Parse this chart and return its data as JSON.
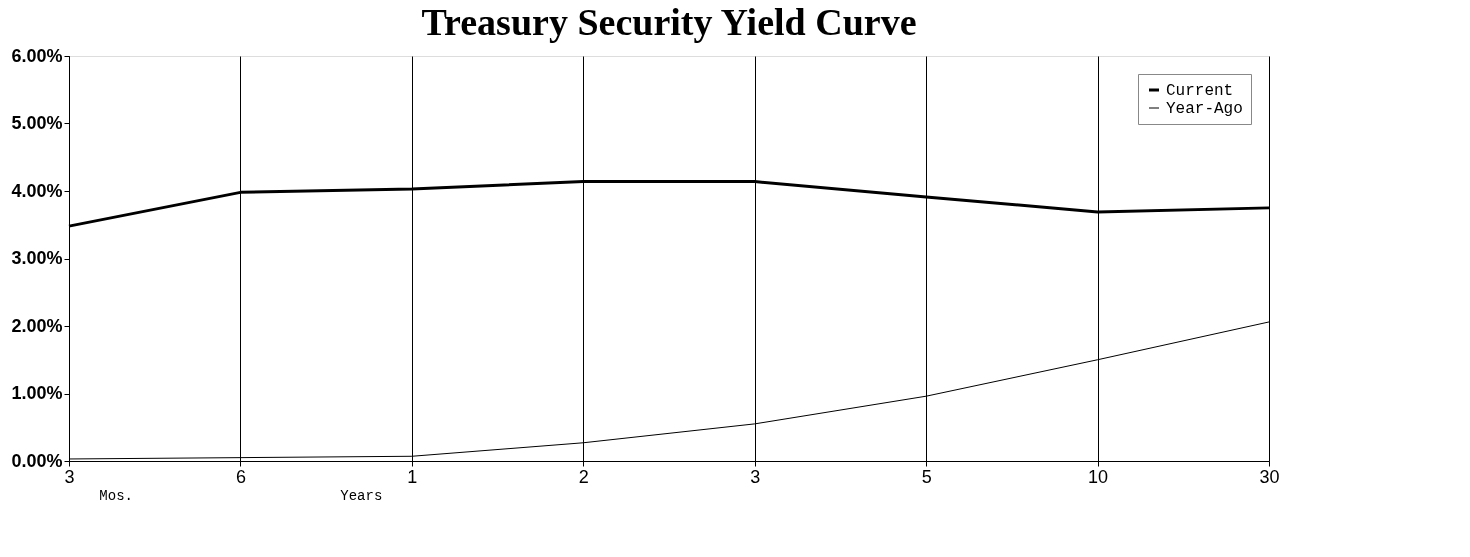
{
  "chart_data": {
    "type": "line",
    "title": "Treasury Security Yield Curve",
    "categories": [
      "3",
      "6",
      "1",
      "2",
      "3",
      "5",
      "10",
      "30"
    ],
    "series": [
      {
        "name": "Current",
        "color": "#000000",
        "values": [
          3.48,
          3.98,
          4.03,
          4.14,
          4.14,
          3.91,
          3.69,
          3.75
        ]
      },
      {
        "name": "Year-Ago",
        "color": "#000000",
        "values": [
          0.03,
          0.05,
          0.07,
          0.27,
          0.55,
          0.96,
          1.5,
          2.06
        ]
      }
    ],
    "ylim": [
      0,
      6
    ],
    "yticks": [
      {
        "value": 0,
        "label": "0.00%"
      },
      {
        "value": 1,
        "label": "1.00%"
      },
      {
        "value": 2,
        "label": "2.00%"
      },
      {
        "value": 3,
        "label": "3.00%"
      },
      {
        "value": 4,
        "label": "4.00%"
      },
      {
        "value": 5,
        "label": "5.00%"
      },
      {
        "value": 6,
        "label": "6.00%"
      }
    ],
    "annotations": [
      "Mos.",
      "Years"
    ],
    "grid": "x",
    "legend": "top right",
    "marker": "none",
    "line_style": "solid"
  }
}
